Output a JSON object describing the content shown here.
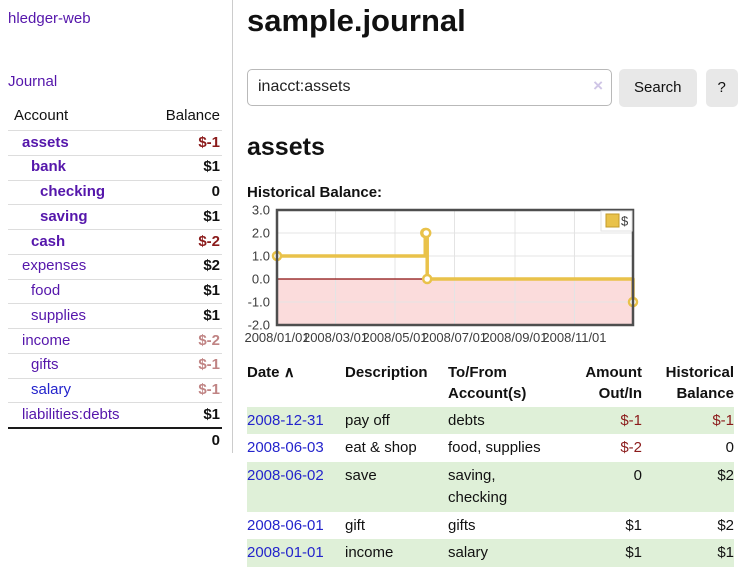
{
  "sidebar": {
    "app_title": "hledger-web",
    "journal_label": "Journal",
    "accounts_table": {
      "headers": {
        "account": "Account",
        "balance": "Balance"
      },
      "rows": [
        {
          "name": "assets",
          "balance": "$-1",
          "level": 1,
          "bold": true
        },
        {
          "name": "bank",
          "balance": "$1",
          "level": 2,
          "bold": true
        },
        {
          "name": "checking",
          "balance": "0",
          "level": 3,
          "bold": true
        },
        {
          "name": "saving",
          "balance": "$1",
          "level": 3,
          "bold": true
        },
        {
          "name": "cash",
          "balance": "$-2",
          "level": 2,
          "bold": true
        },
        {
          "name": "expenses",
          "balance": "$2",
          "level": 1
        },
        {
          "name": "food",
          "balance": "$1",
          "level": 2
        },
        {
          "name": "supplies",
          "balance": "$1",
          "level": 2
        },
        {
          "name": "income",
          "balance": "$-2",
          "level": 1
        },
        {
          "name": "gifts",
          "balance": "$-1",
          "level": 2
        },
        {
          "name": "salary",
          "balance": "$-1",
          "level": 2,
          "link_color": "blue"
        },
        {
          "name": "liabilities:debts",
          "balance": "$1",
          "level": 1
        }
      ],
      "total": "0"
    }
  },
  "header": {
    "title": "sample.journal"
  },
  "search": {
    "value": "inacct:assets",
    "clear_icon": "×",
    "search_label": "Search",
    "help_label": "?"
  },
  "account_page": {
    "title": "assets",
    "chart_label": "Historical Balance:"
  },
  "chart_data": {
    "type": "line",
    "title": "Historical Balance",
    "series": [
      {
        "name": "$",
        "step": true,
        "points": [
          {
            "date": "2008-01-01",
            "value": 1
          },
          {
            "date": "2008-06-01",
            "value": 2
          },
          {
            "date": "2008-06-02",
            "value": 2
          },
          {
            "date": "2008-06-03",
            "value": 0
          },
          {
            "date": "2008-12-31",
            "value": -1
          }
        ]
      }
    ],
    "x_range": [
      "2008-01-01",
      "2008-12-31"
    ],
    "x_ticks": [
      "2008/01/01",
      "2008/03/01",
      "2008/05/01",
      "2008/07/01",
      "2008/09/01",
      "2008/11/01"
    ],
    "y_ticks": [
      3.0,
      2.0,
      1.0,
      0.0,
      -1.0,
      -2.0
    ],
    "ylim": [
      -2,
      3
    ],
    "grid": true,
    "legend": {
      "label": "$",
      "position": "top-right"
    },
    "line_color": "#e9c24a",
    "marker_fill": "#ffffff",
    "negative_fill": "#fbdcdc",
    "zero_line_color": "#8b0f0f",
    "border_color": "#4e4e4e"
  },
  "register_table": {
    "headers": {
      "date": "Date",
      "sort_icon": "∧",
      "description": "Description",
      "tofrom": "To/From Account(s)",
      "amount": "Amount Out/In",
      "balance": "Historical Balance"
    },
    "rows": [
      {
        "date": "2008-12-31",
        "description": "pay off",
        "accounts": "debts",
        "amount": "$-1",
        "balance": "$-1"
      },
      {
        "date": "2008-06-03",
        "description": "eat & shop",
        "accounts": "food, supplies",
        "amount": "$-2",
        "balance": "0"
      },
      {
        "date": "2008-06-02",
        "description": "save",
        "accounts": "saving, checking",
        "amount": "0",
        "balance": "$2"
      },
      {
        "date": "2008-06-01",
        "description": "gift",
        "accounts": "gifts",
        "amount": "$1",
        "balance": "$2"
      },
      {
        "date": "2008-01-01",
        "description": "income",
        "accounts": "salary",
        "amount": "$1",
        "balance": "$1"
      }
    ]
  },
  "colors": {
    "link_purple": "#5516ab",
    "link_blue": "#2424cc",
    "row_stripe_green": "#dff0d8",
    "negative_strong": "#8b1b1b",
    "negative_soft": "#c08484",
    "chart_line_yellow": "#e9c24a",
    "chart_negative_pink": "#fbdcdc"
  }
}
